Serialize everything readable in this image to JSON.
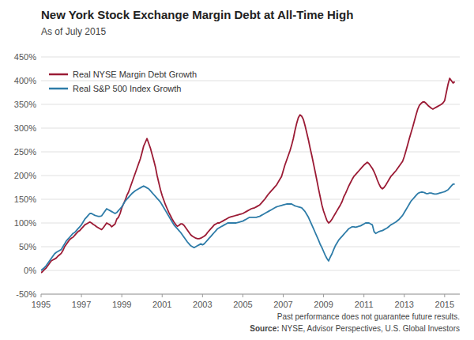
{
  "chart_data": {
    "type": "line",
    "title": "New York Stock Exchange Margin Debt at All-Time High",
    "subtitle": "As of July 2015",
    "annotations": [
      "Past performance does not guarantee future results.",
      "Source:",
      "NYSE, Advisor Perspectives, U.S. Global Investors"
    ],
    "grid": true,
    "legend": "upper left",
    "xlim": [
      1995,
      2015.75
    ],
    "xticks": [
      1995,
      1997,
      1999,
      2001,
      2003,
      2005,
      2007,
      2009,
      2011,
      2013,
      2015
    ],
    "ylim": [
      -50,
      450
    ],
    "yticks": [
      {
        "value": -50,
        "label": "-50%"
      },
      {
        "value": 0,
        "label": "0%"
      },
      {
        "value": 50,
        "label": "50%"
      },
      {
        "value": 100,
        "label": "100%"
      },
      {
        "value": 150,
        "label": "150%"
      },
      {
        "value": 200,
        "label": "200%"
      },
      {
        "value": 250,
        "label": "250%"
      },
      {
        "value": 300,
        "label": "300%"
      },
      {
        "value": 350,
        "label": "350%"
      },
      {
        "value": 400,
        "label": "400%"
      },
      {
        "value": 450,
        "label": "450%"
      }
    ],
    "x": [
      1995.0,
      1995.083,
      1995.167,
      1995.25,
      1995.333,
      1995.417,
      1995.5,
      1995.583,
      1995.667,
      1995.75,
      1995.833,
      1995.917,
      1996.0,
      1996.083,
      1996.167,
      1996.25,
      1996.333,
      1996.417,
      1996.5,
      1996.583,
      1996.667,
      1996.75,
      1996.833,
      1996.917,
      1997.0,
      1997.083,
      1997.167,
      1997.25,
      1997.333,
      1997.417,
      1997.5,
      1997.583,
      1997.667,
      1997.75,
      1997.833,
      1997.917,
      1998.0,
      1998.083,
      1998.167,
      1998.25,
      1998.333,
      1998.417,
      1998.5,
      1998.583,
      1998.667,
      1998.75,
      1998.833,
      1998.917,
      1999.0,
      1999.083,
      1999.167,
      1999.25,
      1999.333,
      1999.417,
      1999.5,
      1999.583,
      1999.667,
      1999.75,
      1999.833,
      1999.917,
      2000.0,
      2000.083,
      2000.167,
      2000.25,
      2000.333,
      2000.417,
      2000.5,
      2000.583,
      2000.667,
      2000.75,
      2000.833,
      2000.917,
      2001.0,
      2001.083,
      2001.167,
      2001.25,
      2001.333,
      2001.417,
      2001.5,
      2001.583,
      2001.667,
      2001.75,
      2001.833,
      2001.917,
      2002.0,
      2002.083,
      2002.167,
      2002.25,
      2002.333,
      2002.417,
      2002.5,
      2002.583,
      2002.667,
      2002.75,
      2002.833,
      2002.917,
      2003.0,
      2003.083,
      2003.167,
      2003.25,
      2003.333,
      2003.417,
      2003.5,
      2003.583,
      2003.667,
      2003.75,
      2003.833,
      2003.917,
      2004.0,
      2004.083,
      2004.167,
      2004.25,
      2004.333,
      2004.417,
      2004.5,
      2004.583,
      2004.667,
      2004.75,
      2004.833,
      2004.917,
      2005.0,
      2005.083,
      2005.167,
      2005.25,
      2005.333,
      2005.417,
      2005.5,
      2005.583,
      2005.667,
      2005.75,
      2005.833,
      2005.917,
      2006.0,
      2006.083,
      2006.167,
      2006.25,
      2006.333,
      2006.417,
      2006.5,
      2006.583,
      2006.667,
      2006.75,
      2006.833,
      2006.917,
      2007.0,
      2007.083,
      2007.167,
      2007.25,
      2007.333,
      2007.417,
      2007.5,
      2007.583,
      2007.667,
      2007.75,
      2007.833,
      2007.917,
      2008.0,
      2008.083,
      2008.167,
      2008.25,
      2008.333,
      2008.417,
      2008.5,
      2008.583,
      2008.667,
      2008.75,
      2008.833,
      2008.917,
      2009.0,
      2009.083,
      2009.167,
      2009.25,
      2009.333,
      2009.417,
      2009.5,
      2009.583,
      2009.667,
      2009.75,
      2009.833,
      2009.917,
      2010.0,
      2010.083,
      2010.167,
      2010.25,
      2010.333,
      2010.417,
      2010.5,
      2010.583,
      2010.667,
      2010.75,
      2010.833,
      2010.917,
      2011.0,
      2011.083,
      2011.167,
      2011.25,
      2011.333,
      2011.417,
      2011.5,
      2011.583,
      2011.667,
      2011.75,
      2011.833,
      2011.917,
      2012.0,
      2012.083,
      2012.167,
      2012.25,
      2012.333,
      2012.417,
      2012.5,
      2012.583,
      2012.667,
      2012.75,
      2012.833,
      2012.917,
      2013.0,
      2013.083,
      2013.167,
      2013.25,
      2013.333,
      2013.417,
      2013.5,
      2013.583,
      2013.667,
      2013.75,
      2013.833,
      2013.917,
      2014.0,
      2014.083,
      2014.167,
      2014.25,
      2014.333,
      2014.417,
      2014.5,
      2014.583,
      2014.667,
      2014.75,
      2014.833,
      2014.917,
      2015.0,
      2015.083,
      2015.167,
      2015.25,
      2015.333,
      2015.417,
      2015.5
    ],
    "series": [
      {
        "name": "Real NYSE Margin Debt Growth",
        "color": "#9B1B35",
        "values": [
          -5,
          -2,
          2,
          5,
          10,
          15,
          20,
          22,
          24,
          26,
          30,
          33,
          36,
          42,
          50,
          55,
          60,
          65,
          68,
          70,
          74,
          78,
          82,
          84,
          88,
          92,
          96,
          98,
          100,
          102,
          100,
          97,
          95,
          92,
          90,
          88,
          86,
          90,
          95,
          100,
          98,
          96,
          92,
          95,
          98,
          108,
          112,
          120,
          132,
          140,
          148,
          158,
          165,
          175,
          185,
          195,
          205,
          215,
          225,
          235,
          248,
          262,
          270,
          278,
          268,
          258,
          245,
          232,
          218,
          200,
          185,
          170,
          158,
          148,
          138,
          130,
          122,
          115,
          108,
          102,
          97,
          93,
          95,
          98,
          98,
          95,
          90,
          85,
          80,
          75,
          72,
          70,
          68,
          67,
          67,
          68,
          70,
          72,
          75,
          80,
          84,
          88,
          92,
          96,
          98,
          100,
          100,
          102,
          104,
          106,
          108,
          110,
          112,
          113,
          114,
          115,
          116,
          117,
          118,
          119,
          120,
          122,
          124,
          126,
          128,
          130,
          131,
          132,
          134,
          136,
          138,
          142,
          146,
          150,
          155,
          160,
          164,
          168,
          172,
          176,
          180,
          186,
          192,
          198,
          210,
          222,
          232,
          242,
          252,
          264,
          278,
          295,
          310,
          322,
          328,
          325,
          318,
          305,
          290,
          275,
          258,
          242,
          225,
          208,
          190,
          172,
          155,
          138,
          125,
          115,
          105,
          100,
          103,
          108,
          114,
          120,
          126,
          132,
          138,
          145,
          155,
          162,
          170,
          178,
          185,
          192,
          198,
          202,
          206,
          210,
          214,
          218,
          222,
          225,
          228,
          225,
          220,
          215,
          208,
          200,
          190,
          182,
          175,
          172,
          175,
          180,
          186,
          192,
          198,
          202,
          206,
          210,
          215,
          220,
          225,
          230,
          240,
          252,
          265,
          278,
          290,
          302,
          315,
          328,
          340,
          348,
          352,
          355,
          355,
          352,
          348,
          345,
          342,
          340,
          342,
          344,
          346,
          348,
          350,
          353,
          358,
          375,
          392,
          405,
          400,
          395,
          398
        ]
      },
      {
        "name": "Real S&P 500 Index Growth",
        "color": "#2E7CA8",
        "values": [
          0,
          3,
          6,
          10,
          15,
          20,
          25,
          30,
          35,
          38,
          40,
          42,
          44,
          50,
          56,
          62,
          66,
          70,
          74,
          78,
          80,
          84,
          88,
          92,
          96,
          102,
          108,
          112,
          116,
          120,
          120,
          118,
          116,
          115,
          114,
          114,
          115,
          120,
          125,
          130,
          128,
          126,
          124,
          122,
          120,
          122,
          126,
          130,
          134,
          140,
          146,
          150,
          154,
          158,
          162,
          165,
          168,
          170,
          172,
          174,
          176,
          178,
          176,
          174,
          172,
          168,
          164,
          160,
          156,
          152,
          148,
          144,
          138,
          132,
          126,
          120,
          114,
          108,
          102,
          96,
          92,
          88,
          84,
          80,
          75,
          70,
          65,
          60,
          56,
          52,
          50,
          48,
          50,
          52,
          54,
          56,
          54,
          56,
          60,
          64,
          68,
          72,
          76,
          80,
          84,
          88,
          90,
          92,
          94,
          96,
          98,
          100,
          100,
          100,
          100,
          100,
          100,
          101,
          102,
          103,
          104,
          106,
          108,
          110,
          112,
          112,
          112,
          112,
          112,
          113,
          114,
          116,
          118,
          120,
          122,
          124,
          126,
          128,
          130,
          132,
          134,
          135,
          136,
          137,
          138,
          139,
          140,
          140,
          140,
          140,
          138,
          136,
          135,
          134,
          133,
          132,
          128,
          124,
          118,
          112,
          104,
          96,
          88,
          80,
          72,
          64,
          55,
          48,
          40,
          32,
          25,
          20,
          28,
          35,
          44,
          52,
          58,
          64,
          68,
          72,
          76,
          80,
          84,
          88,
          90,
          92,
          92,
          91,
          92,
          93,
          94,
          96,
          98,
          100,
          100,
          100,
          98,
          96,
          82,
          78,
          80,
          82,
          83,
          84,
          86,
          88,
          90,
          93,
          96,
          98,
          100,
          102,
          105,
          108,
          112,
          116,
          122,
          128,
          134,
          140,
          146,
          150,
          154,
          158,
          162,
          164,
          165,
          165,
          164,
          162,
          162,
          163,
          163,
          162,
          161,
          161,
          162,
          163,
          164,
          165,
          166,
          168,
          170,
          174,
          178,
          182,
          182
        ]
      }
    ]
  }
}
